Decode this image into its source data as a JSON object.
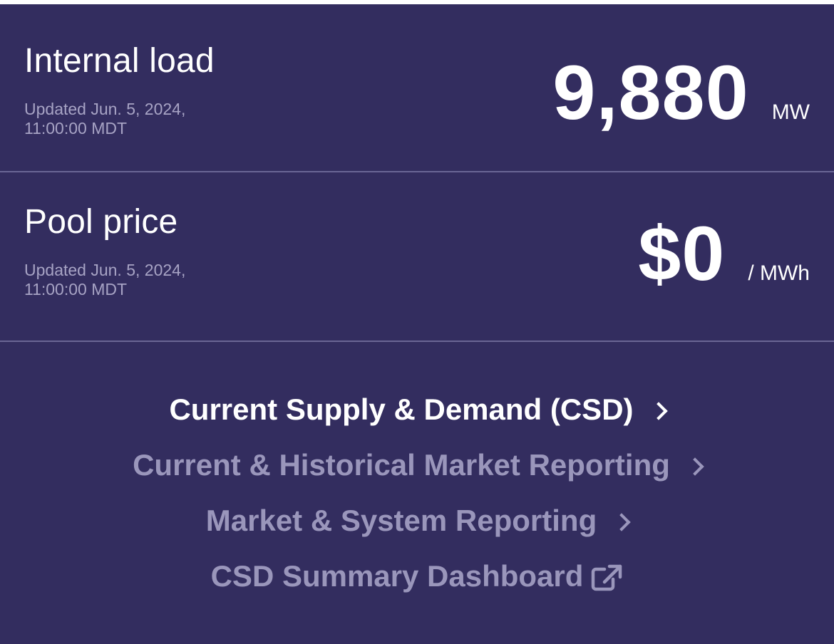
{
  "internal_load": {
    "title": "Internal load",
    "updated": "Updated Jun. 5, 2024, 11:00:00 MDT",
    "value": "9,880",
    "unit": "MW"
  },
  "pool_price": {
    "title": "Pool price",
    "updated": "Updated Jun. 5, 2024, 11:00:00 MDT",
    "value": "$0",
    "unit": "/ MWh"
  },
  "links": [
    {
      "label": "Current Supply & Demand (CSD)",
      "icon": "chevron-right-icon",
      "active": true
    },
    {
      "label": "Current & Historical Market Reporting",
      "icon": "chevron-right-icon",
      "active": false
    },
    {
      "label": "Market & System Reporting",
      "icon": "chevron-right-icon",
      "active": false
    },
    {
      "label": "CSD Summary Dashboard",
      "icon": "external-link-icon",
      "active": false
    }
  ],
  "colors": {
    "background": "#332d5f",
    "text_primary": "#ffffff",
    "text_muted": "#9a96bb",
    "divider": "#6a6694"
  }
}
